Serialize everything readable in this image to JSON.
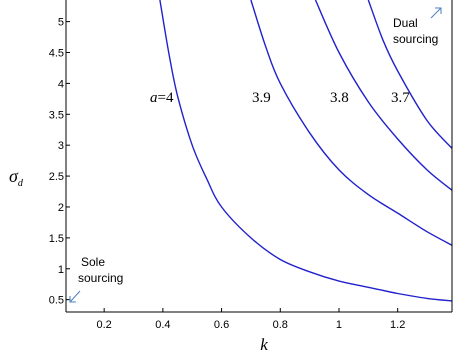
{
  "chart_data": {
    "type": "line",
    "xlabel": "k",
    "ylabel": "σ",
    "ylabel_sub": "d",
    "xlim": [
      0.07,
      1.385
    ],
    "ylim": [
      0.3,
      5.35
    ],
    "xticks": [
      0.2,
      0.4,
      0.6,
      0.8,
      1,
      1.2
    ],
    "xtick_labels": [
      "0.2",
      "0.4",
      "0.6",
      "0.8",
      "1",
      "1.2"
    ],
    "yticks": [
      0.5,
      1,
      1.5,
      2,
      2.5,
      3,
      3.5,
      4,
      4.5,
      5
    ],
    "ytick_labels": [
      "0.5",
      "1",
      "1.5",
      "2",
      "2.5",
      "3",
      "3.5",
      "4",
      "4.5",
      "5"
    ],
    "grid": false,
    "line_color": "#2222cc",
    "series": [
      {
        "label": "a=4",
        "x": [
          0.39,
          0.42,
          0.45,
          0.5,
          0.55,
          0.6,
          0.7,
          0.8,
          0.9,
          1.0,
          1.1,
          1.2,
          1.3,
          1.385
        ],
        "y": [
          5.35,
          4.5,
          3.8,
          3.0,
          2.45,
          2.0,
          1.5,
          1.15,
          0.95,
          0.8,
          0.7,
          0.6,
          0.52,
          0.48
        ]
      },
      {
        "label": "3.9",
        "x": [
          0.7,
          0.75,
          0.8,
          0.9,
          1.0,
          1.1,
          1.2,
          1.3,
          1.385
        ],
        "y": [
          5.35,
          4.6,
          4.0,
          3.2,
          2.6,
          2.2,
          1.9,
          1.6,
          1.38
        ]
      },
      {
        "label": "3.8",
        "x": [
          0.92,
          1.0,
          1.1,
          1.2,
          1.3,
          1.385
        ],
        "y": [
          5.35,
          4.5,
          3.7,
          3.1,
          2.6,
          2.27
        ]
      },
      {
        "label": "3.7",
        "x": [
          1.1,
          1.15,
          1.2,
          1.3,
          1.385
        ],
        "y": [
          5.35,
          4.7,
          4.2,
          3.4,
          2.95
        ]
      }
    ],
    "labels": {
      "a4_italic": "a",
      "a4_value": "=4",
      "c39": "3.9",
      "c38": "3.8",
      "c37": "3.7"
    },
    "regions": {
      "dual_line1": "Dual",
      "dual_line2": "sourcing",
      "sole_line1": "Sole",
      "sole_line2": "sourcing"
    }
  }
}
